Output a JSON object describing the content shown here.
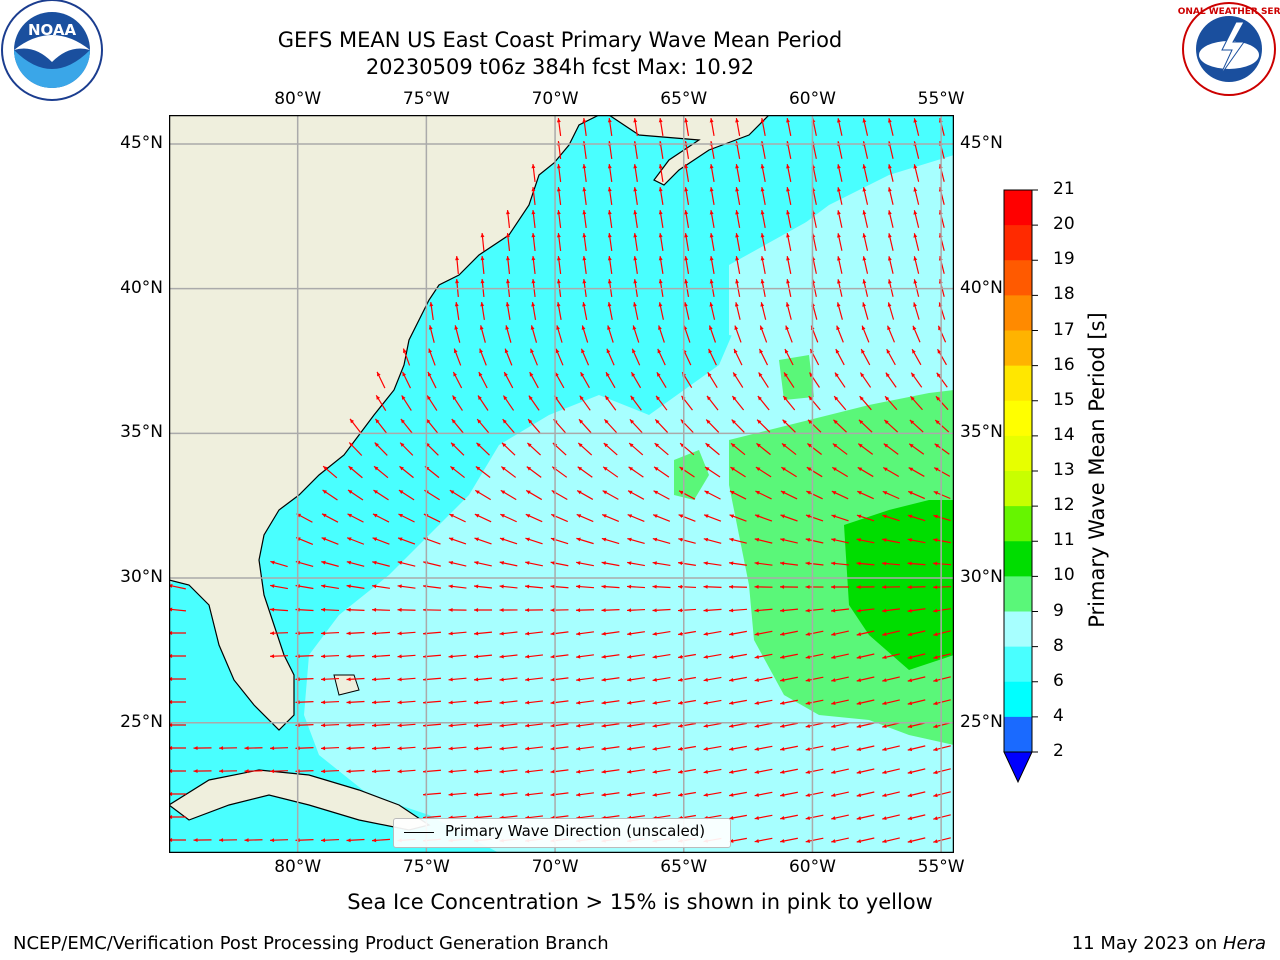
{
  "title": {
    "line1": "GEFS MEAN US East Coast Primary Wave Mean Period",
    "line2": "20230509 t06z 384h fcst   Max: 10.92"
  },
  "axes": {
    "lon_labels": [
      "80°W",
      "75°W",
      "70°W",
      "65°W",
      "60°W",
      "55°W"
    ],
    "lat_labels": [
      "45°N",
      "40°N",
      "35°N",
      "30°N",
      "25°N"
    ],
    "lon_values": [
      -80,
      -75,
      -70,
      -65,
      -60,
      -55
    ],
    "lat_values": [
      45,
      40,
      35,
      30,
      25
    ],
    "lon_range": [
      -85,
      -54.5
    ],
    "lat_range": [
      20.5,
      46
    ]
  },
  "legend": {
    "label": "Primary Wave Direction (unscaled)"
  },
  "colorbar": {
    "label": "Primary Wave Mean Period [s]",
    "ticks": [
      "2",
      "4",
      "6",
      "8",
      "9",
      "10",
      "11",
      "12",
      "13",
      "14",
      "15",
      "16",
      "17",
      "18",
      "19",
      "20",
      "21"
    ],
    "colors": [
      "#1a6aff",
      "#00ffff",
      "#49ffff",
      "#a7ffff",
      "#5af779",
      "#00dd00",
      "#66f500",
      "#c8ff00",
      "#e7ff00",
      "#ffff00",
      "#ffe700",
      "#ffb300",
      "#ff8a00",
      "#ff5a00",
      "#ff2a00",
      "#ff0000"
    ],
    "under_color": "#0000ff"
  },
  "subtitle": "Sea Ice Concentration > 15% is shown in pink to yellow",
  "footer": {
    "left": "NCEP/EMC/Verification Post Processing Product Generation Branch",
    "date": "11 May 2023 on ",
    "machine": "Hera"
  },
  "logos": {
    "noaa_text": "NOAA",
    "nws_text": "NATIONAL WEATHER SERVICE"
  },
  "map_colors": {
    "land": "#efefdd",
    "ocean_base": "#a7ffff",
    "ocean_cyan": "#49ffff",
    "ocean_green": "#5af779",
    "ocean_dkgreen": "#00dd00",
    "arrow": "#ff0000"
  }
}
